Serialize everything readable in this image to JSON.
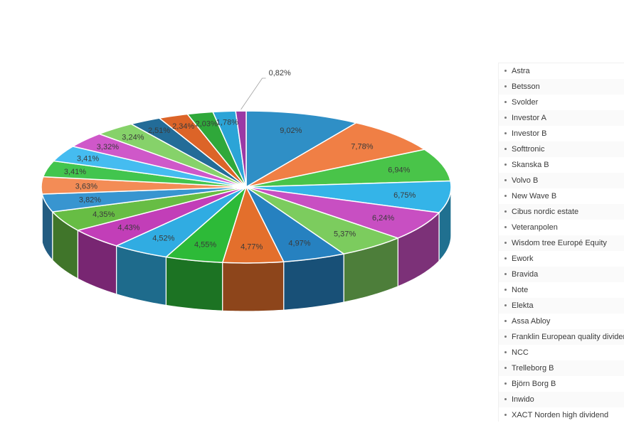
{
  "chart_data": {
    "type": "pie",
    "style": "3d-exploded-tilted",
    "categories": [
      "Astra",
      "Betsson",
      "Svolder",
      "Investor A",
      "Investor B",
      "Softtronic",
      "Skanska B",
      "Volvo B",
      "New Wave B",
      "Cibus nordic estate",
      "Veteranpolen",
      "Wisdom tree  Europé Equity",
      "Ework",
      "Bravida",
      "Note",
      "Elekta",
      "Assa Abloy",
      "Franklin European quality dividend",
      "NCC",
      "Trelleborg B",
      "Björn Borg B",
      "Inwido",
      "XACT Norden high dividend"
    ],
    "values": [
      9.02,
      7.78,
      6.94,
      6.75,
      6.24,
      5.37,
      4.97,
      4.77,
      4.55,
      4.52,
      4.43,
      4.35,
      3.82,
      3.63,
      3.41,
      3.41,
      3.32,
      3.24,
      2.51,
      2.34,
      2.03,
      1.78,
      0.82
    ],
    "labels": [
      "9,02%",
      "7,78%",
      "6,94%",
      "6,75%",
      "6,24%",
      "5,37%",
      "4,97%",
      "4,77%",
      "4,55%",
      "4,52%",
      "4,43%",
      "4,35%",
      "3,82%",
      "3,63%",
      "3,41%",
      "3,41%",
      "3,32%",
      "3,24%",
      "2,51%",
      "2,34%",
      "2,03%",
      "1,78%",
      "0,82%"
    ],
    "colors": [
      "#2f8fc6",
      "#f07f45",
      "#49c449",
      "#34b4e8",
      "#c84fc2",
      "#7ccc5e",
      "#2681c0",
      "#e36f2c",
      "#2dba38",
      "#30ace2",
      "#c23eb8",
      "#67bd44",
      "#3895d0",
      "#f38c56",
      "#42c54e",
      "#45bcf0",
      "#cf58c9",
      "#86d26a",
      "#236c98",
      "#dc6428",
      "#2fa83a",
      "#2ba4d7",
      "#9b39a5"
    ],
    "legend_position": "right",
    "title": ""
  }
}
